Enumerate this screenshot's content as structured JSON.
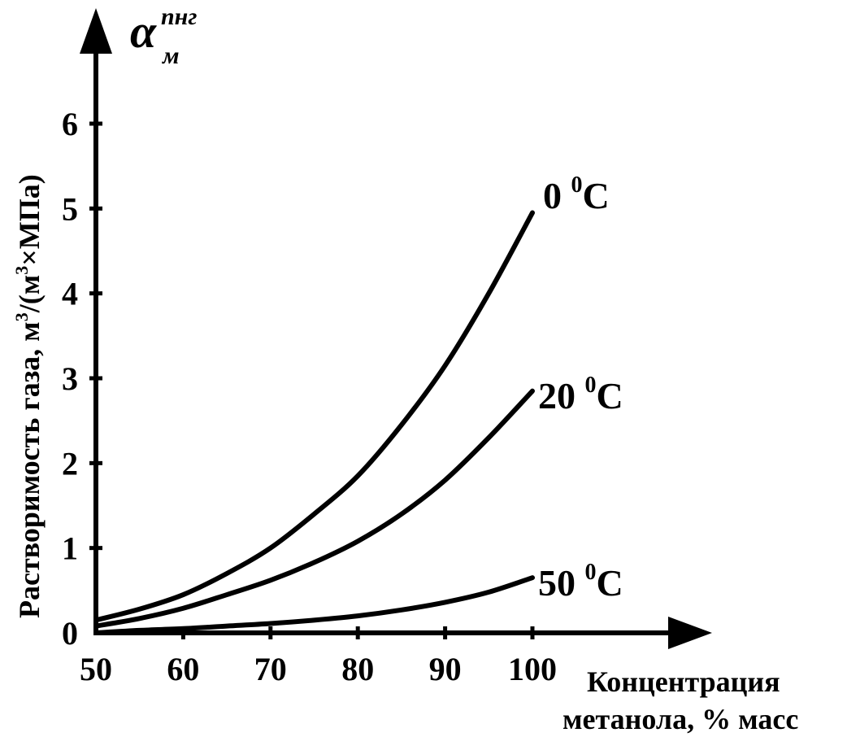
{
  "chart_data": {
    "type": "line",
    "title": "",
    "y_symbol": {
      "main": "α",
      "superscript": "пнг",
      "subscript": "м"
    },
    "ylabel": {
      "text": "Растворимость газа, м",
      "superscript": "3",
      "suffix": "/(м",
      "superscript2": "3",
      "suffix2": "×МПа)"
    },
    "xlabel": {
      "line1": "Концентрация",
      "line2": "метанола, % масс"
    },
    "xlim": [
      50,
      100
    ],
    "ylim": [
      0,
      6
    ],
    "x_ticks": [
      "50",
      "60",
      "70",
      "80",
      "90",
      "100"
    ],
    "y_ticks": [
      "0",
      "1",
      "2",
      "3",
      "4",
      "5",
      "6"
    ],
    "series": [
      {
        "name": "0 °C",
        "label_main": "0 ",
        "label_sup": "0",
        "label_unit": "C",
        "x": [
          50,
          55,
          60,
          65,
          70,
          75,
          80,
          85,
          90,
          95,
          100
        ],
        "y": [
          0.15,
          0.28,
          0.45,
          0.7,
          1.0,
          1.4,
          1.85,
          2.45,
          3.15,
          4.0,
          4.95
        ]
      },
      {
        "name": "20 °C",
        "label_main": "20 ",
        "label_sup": "0",
        "label_unit": "C",
        "x": [
          50,
          55,
          60,
          65,
          70,
          75,
          80,
          85,
          90,
          95,
          100
        ],
        "y": [
          0.08,
          0.17,
          0.29,
          0.45,
          0.62,
          0.83,
          1.08,
          1.4,
          1.8,
          2.3,
          2.85
        ]
      },
      {
        "name": "50 °C",
        "label_main": "50 ",
        "label_sup": "0",
        "label_unit": "C",
        "x": [
          50,
          55,
          60,
          65,
          70,
          75,
          80,
          85,
          90,
          95,
          100
        ],
        "y": [
          0.0,
          0.03,
          0.05,
          0.08,
          0.11,
          0.15,
          0.2,
          0.27,
          0.36,
          0.48,
          0.65
        ]
      }
    ],
    "grid": false,
    "legend": "inline labels at line ends"
  }
}
